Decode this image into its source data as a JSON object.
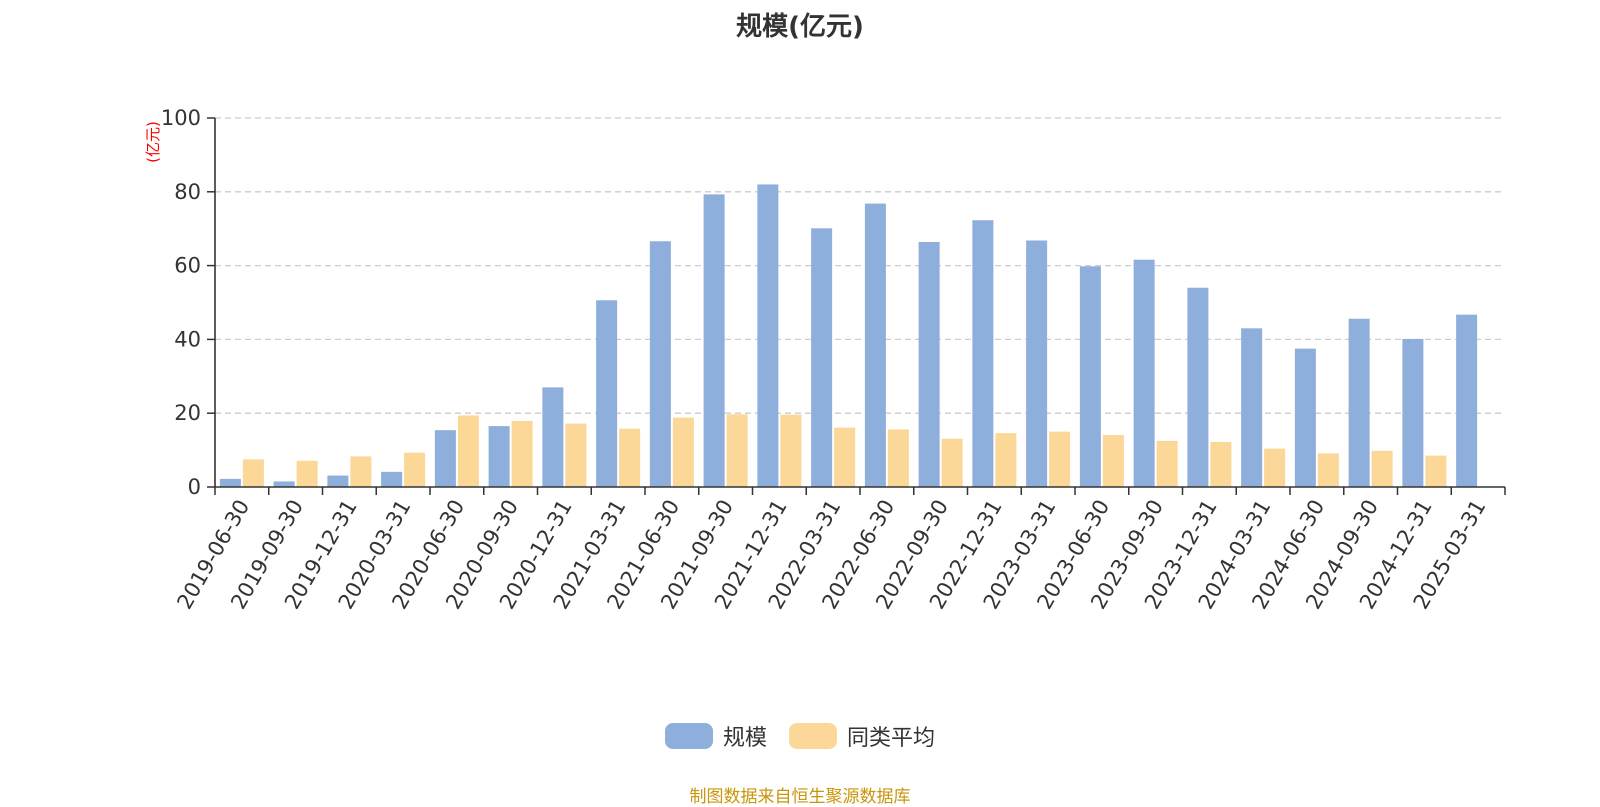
{
  "title": "规模(亿元)",
  "source": "制图数据来自恒生聚源数据库",
  "colors": {
    "scale": "#8eaedc",
    "avg": "#fcd898",
    "axis": "#333333",
    "grid": "#cccccc",
    "unit": "#ff0000"
  },
  "chart_data": {
    "type": "bar",
    "title": "规模(亿元)",
    "ylabel": "(亿元)",
    "ylim": [
      0,
      100
    ],
    "yticks": [
      0,
      20,
      40,
      60,
      80,
      100
    ],
    "grid": true,
    "legend_position": "bottom",
    "categories": [
      "2019-06-30",
      "2019-09-30",
      "2019-12-31",
      "2020-03-31",
      "2020-06-30",
      "2020-09-30",
      "2020-12-31",
      "2021-03-31",
      "2021-06-30",
      "2021-09-30",
      "2021-12-31",
      "2022-03-31",
      "2022-06-30",
      "2022-09-30",
      "2022-12-31",
      "2023-03-31",
      "2023-06-30",
      "2023-09-30",
      "2023-12-31",
      "2024-03-31",
      "2024-06-30",
      "2024-09-30",
      "2024-12-31",
      "2025-03-31"
    ],
    "series": [
      {
        "name": "规模",
        "color": "#8eaedc",
        "values": [
          2.2,
          1.5,
          3.1,
          4.1,
          15.4,
          16.5,
          27.0,
          50.6,
          66.6,
          79.3,
          82.0,
          70.1,
          76.8,
          66.4,
          72.3,
          66.8,
          59.8,
          61.6,
          54.0,
          43.0,
          37.5,
          45.6,
          40.1,
          46.7
        ]
      },
      {
        "name": "同类平均",
        "color": "#fcd898",
        "values": [
          7.5,
          7.1,
          8.3,
          9.3,
          19.4,
          17.9,
          17.2,
          15.8,
          18.8,
          19.7,
          19.6,
          16.1,
          15.6,
          13.1,
          14.6,
          15.0,
          14.1,
          12.5,
          12.2,
          10.4,
          9.1,
          9.8,
          8.5,
          null
        ]
      }
    ]
  }
}
